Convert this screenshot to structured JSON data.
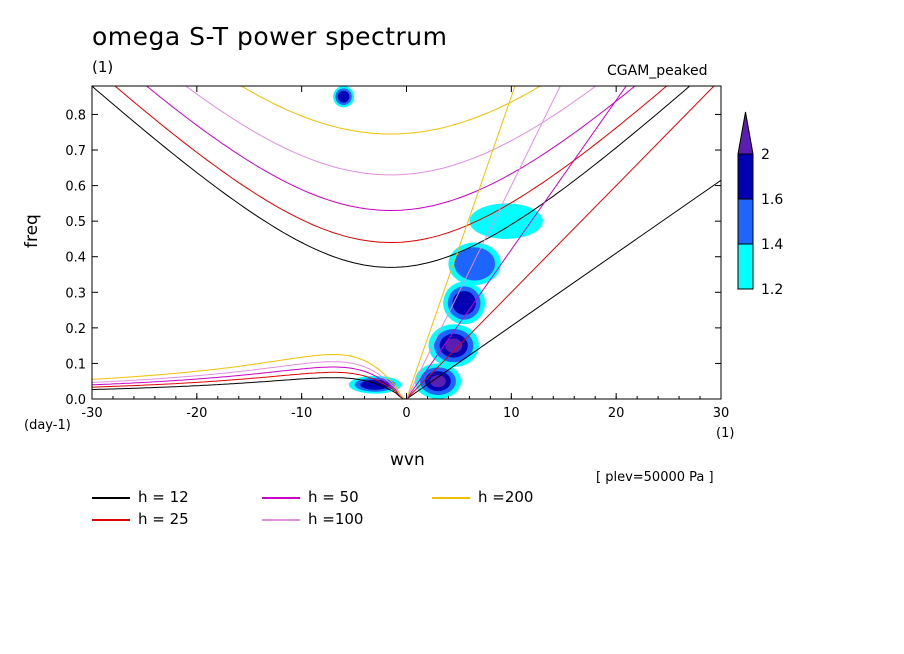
{
  "chart_data": {
    "type": "heatmap",
    "title": "omega S-T power spectrum",
    "title_unit": "(1)",
    "model": "CGAM_peaked",
    "xlabel": "wvn",
    "ylabel": "freq",
    "x_unit": "(1)",
    "y_unit": "(day-1)",
    "annotation": "[ plev=50000 Pa ]",
    "xlim": [
      -30,
      30
    ],
    "ylim": [
      0,
      0.88
    ],
    "x_ticks": [
      -30,
      -20,
      -10,
      0,
      10,
      20,
      30
    ],
    "y_ticks": [
      0.0,
      0.1,
      0.2,
      0.3,
      0.4,
      0.5,
      0.6,
      0.7,
      0.8
    ],
    "x_tick_labels": [
      "-30",
      "-20",
      "-10",
      "0",
      "10",
      "20",
      "30"
    ],
    "y_tick_labels": [
      "0.0",
      "0.1",
      "0.2",
      "0.3",
      "0.4",
      "0.5",
      "0.6",
      "0.7",
      "0.8"
    ],
    "colorbar": {
      "levels": [
        1.2,
        1.4,
        1.6,
        2
      ],
      "level_labels": [
        "1.2",
        "1.4",
        "1.6",
        "2"
      ],
      "colors": [
        "#00ffff",
        "#1e64ff",
        "#0000b4",
        "#5a1eb4"
      ]
    },
    "dispersion_curves": [
      {
        "label": "h = 12",
        "color": "#000000",
        "w0": 0.37,
        "wmin": 0.06
      },
      {
        "label": "h = 25",
        "color": "#e00000",
        "w0": 0.44,
        "wmin": 0.075
      },
      {
        "label": "h = 50",
        "color": "#c800c8",
        "w0": 0.53,
        "wmin": 0.09
      },
      {
        "label": "h =100",
        "color": "#e090e0",
        "w0": 0.63,
        "wmin": 0.105
      },
      {
        "label": "h =200",
        "color": "#f0c000",
        "w0": 0.745,
        "wmin": 0.125
      }
    ],
    "kelvin_slopes": {
      "h = 12": 0.0205,
      "h = 25": 0.03,
      "h = 50": 0.042,
      "h =100": 0.06,
      "h =200": 0.085
    },
    "power_regions": [
      {
        "x": 3,
        "y": 0.05,
        "rx": 2.2,
        "ry": 0.05,
        "level": 4
      },
      {
        "x": 4.5,
        "y": 0.15,
        "rx": 2.4,
        "ry": 0.06,
        "level": 4
      },
      {
        "x": 5.5,
        "y": 0.27,
        "rx": 2.0,
        "ry": 0.06,
        "level": 3
      },
      {
        "x": 6.5,
        "y": 0.38,
        "rx": 2.5,
        "ry": 0.06,
        "level": 2
      },
      {
        "x": 9.5,
        "y": 0.5,
        "rx": 3.5,
        "ry": 0.05,
        "level": 1
      },
      {
        "x": -3,
        "y": 0.04,
        "rx": 2.5,
        "ry": 0.025,
        "level": 3
      },
      {
        "x": -6,
        "y": 0.85,
        "rx": 1.0,
        "ry": 0.03,
        "level": 3
      }
    ]
  },
  "legend": [
    {
      "label": "h = 12",
      "color": "#000000"
    },
    {
      "label": "h = 25",
      "color": "#e00000"
    },
    {
      "label": "h = 50",
      "color": "#c800c8"
    },
    {
      "label": "h =100",
      "color": "#e090e0"
    },
    {
      "label": "h =200",
      "color": "#f0c000"
    }
  ]
}
